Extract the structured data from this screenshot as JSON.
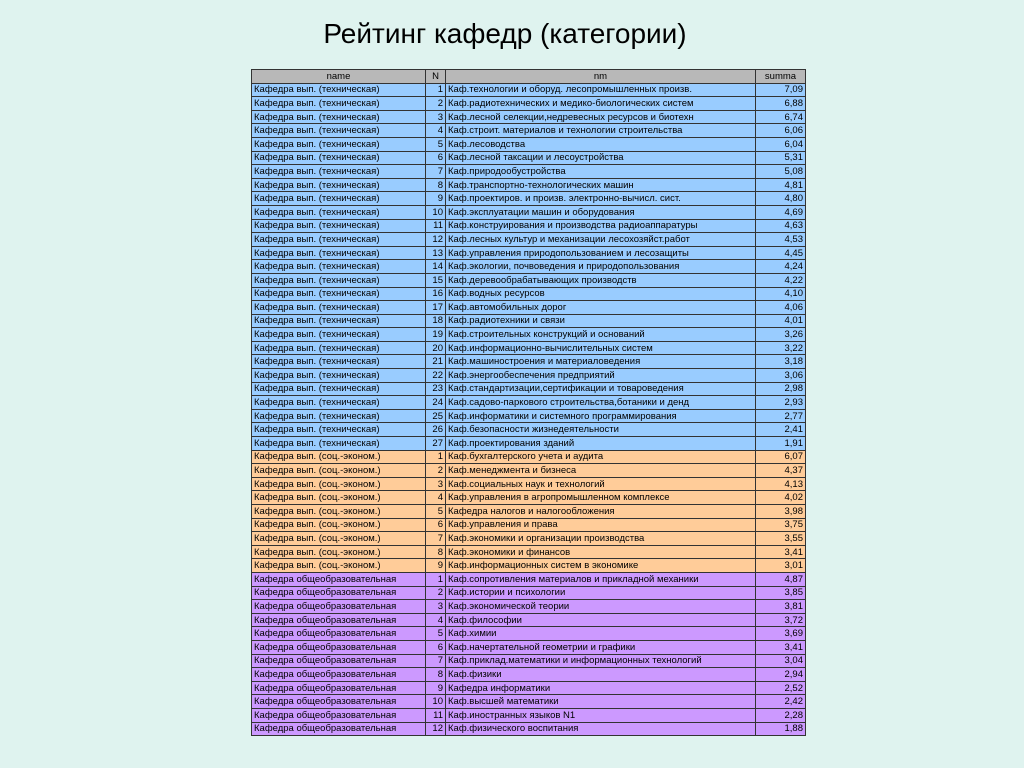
{
  "title": "Рейтинг кафедр (категории)",
  "colors": {
    "background": "#dff3ef",
    "header": "#b8b8b8",
    "technical": "#99ccff",
    "socioeconomic": "#ffcc99",
    "general": "#cc99ff"
  },
  "table": {
    "headers": [
      "name",
      "N",
      "nm",
      "summa"
    ],
    "groups": [
      {
        "category": "Кафедра вып. (техническая)",
        "color_key": "technical",
        "rows": [
          {
            "n": "1",
            "nm": "Каф.технологии и оборуд. лесопромышленных произв.",
            "summa": "7,09"
          },
          {
            "n": "2",
            "nm": "Каф.радиотехнических и медико-биологических систем",
            "summa": "6,88"
          },
          {
            "n": "3",
            "nm": "Каф.лесной селекции,недревесных ресурсов и биотехн",
            "summa": "6,74"
          },
          {
            "n": "4",
            "nm": "Каф.строит. материалов и технологии строительства",
            "summa": "6,06"
          },
          {
            "n": "5",
            "nm": "Каф.лесоводства",
            "summa": "6,04"
          },
          {
            "n": "6",
            "nm": "Каф.лесной таксации и лесоустройства",
            "summa": "5,31"
          },
          {
            "n": "7",
            "nm": "Каф.природообустройства",
            "summa": "5,08"
          },
          {
            "n": "8",
            "nm": "Каф.транспортно-технологических машин",
            "summa": "4,81"
          },
          {
            "n": "9",
            "nm": "Каф.проектиров. и произв. электронно-вычисл. сист.",
            "summa": "4,80"
          },
          {
            "n": "10",
            "nm": "Каф.эксплуатации машин и оборудования",
            "summa": "4,69"
          },
          {
            "n": "11",
            "nm": "Каф.конструирования и производства радиоаппаратуры",
            "summa": "4,63"
          },
          {
            "n": "12",
            "nm": "Каф.лесных культур и механизации лесохозяйст.работ",
            "summa": "4,53"
          },
          {
            "n": "13",
            "nm": "Каф.управления природопользованием и лесозащиты",
            "summa": "4,45"
          },
          {
            "n": "14",
            "nm": "Каф.экологии, почвоведения и природопользования",
            "summa": "4,24"
          },
          {
            "n": "15",
            "nm": "Каф.деревообрабатывающих производств",
            "summa": "4,22"
          },
          {
            "n": "16",
            "nm": "Каф.водных ресурсов",
            "summa": "4,10"
          },
          {
            "n": "17",
            "nm": "Каф.автомобильных дорог",
            "summa": "4,06"
          },
          {
            "n": "18",
            "nm": "Каф.радиотехники и связи",
            "summa": "4,01"
          },
          {
            "n": "19",
            "nm": "Каф.строительных конструкций и оснований",
            "summa": "3,26"
          },
          {
            "n": "20",
            "nm": "Каф.информационно-вычислительных систем",
            "summa": "3,22"
          },
          {
            "n": "21",
            "nm": "Каф.машиностроения и материаловедения",
            "summa": "3,18"
          },
          {
            "n": "22",
            "nm": "Каф.энергообеспечения предприятий",
            "summa": "3,06"
          },
          {
            "n": "23",
            "nm": "Каф.стандартизации,сертификации и товароведения",
            "summa": "2,98"
          },
          {
            "n": "24",
            "nm": "Каф.садово-паркового строительства,ботаники и денд",
            "summa": "2,93"
          },
          {
            "n": "25",
            "nm": "Каф.информатики и системного программирования",
            "summa": "2,77"
          },
          {
            "n": "26",
            "nm": "Каф.безопасности жизнедеятельности",
            "summa": "2,41"
          },
          {
            "n": "27",
            "nm": "Каф.проектирования зданий",
            "summa": "1,91"
          }
        ]
      },
      {
        "category": "Кафедра вып. (соц.-эконом.)",
        "color_key": "socioeconomic",
        "rows": [
          {
            "n": "1",
            "nm": "Каф.бухгалтерского учета и аудита",
            "summa": "6,07"
          },
          {
            "n": "2",
            "nm": "Каф.менеджмента и бизнеса",
            "summa": "4,37"
          },
          {
            "n": "3",
            "nm": "Каф.социальных наук и технологий",
            "summa": "4,13"
          },
          {
            "n": "4",
            "nm": "Каф.управления в агропромышленном комплексе",
            "summa": "4,02"
          },
          {
            "n": "5",
            "nm": "Кафедра налогов и налогообложения",
            "summa": "3,98"
          },
          {
            "n": "6",
            "nm": "Каф.управления и права",
            "summa": "3,75"
          },
          {
            "n": "7",
            "nm": "Каф.экономики и организации производства",
            "summa": "3,55"
          },
          {
            "n": "8",
            "nm": "Каф.экономики и финансов",
            "summa": "3,41"
          },
          {
            "n": "9",
            "nm": "Каф.информационных систем в экономике",
            "summa": "3,01"
          }
        ]
      },
      {
        "category": "Кафедра общеобразовательная",
        "color_key": "general",
        "rows": [
          {
            "n": "1",
            "nm": "Каф.сопротивления материалов и прикладной механики",
            "summa": "4,87"
          },
          {
            "n": "2",
            "nm": "Каф.истории и психологии",
            "summa": "3,85"
          },
          {
            "n": "3",
            "nm": "Каф.экономической теории",
            "summa": "3,81"
          },
          {
            "n": "4",
            "nm": "Каф.философии",
            "summa": "3,72"
          },
          {
            "n": "5",
            "nm": "Каф.химии",
            "summa": "3,69"
          },
          {
            "n": "6",
            "nm": "Каф.начертательной геометрии и графики",
            "summa": "3,41"
          },
          {
            "n": "7",
            "nm": "Каф.приклад.математики и информационных технологий",
            "summa": "3,04"
          },
          {
            "n": "8",
            "nm": "Каф.физики",
            "summa": "2,94"
          },
          {
            "n": "9",
            "nm": "Кафедра информатики",
            "summa": "2,52"
          },
          {
            "n": "10",
            "nm": "Каф.высшей математики",
            "summa": "2,42"
          },
          {
            "n": "11",
            "nm": "Каф.иностранных языков N1",
            "summa": "2,28"
          },
          {
            "n": "12",
            "nm": "Каф.физического воспитания",
            "summa": "1,88"
          }
        ]
      }
    ]
  }
}
